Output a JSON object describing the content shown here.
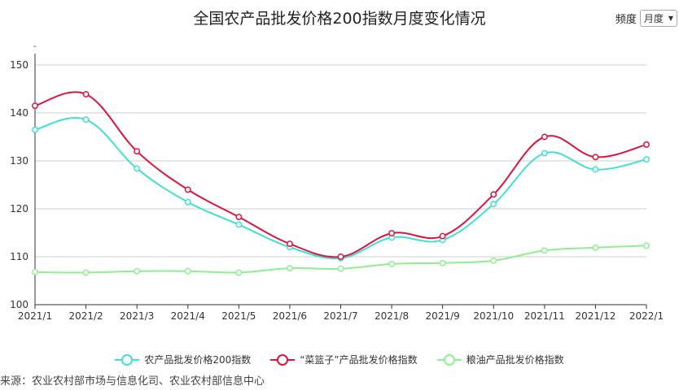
{
  "title": "全国农产品批发价格200指数月度变化情况",
  "frequency": {
    "label": "频度",
    "value": "月度"
  },
  "source": "来源：农业农村部市场与信息化司、农业农村部信息中心",
  "y_marker": "-",
  "chart_data": {
    "type": "line",
    "categories": [
      "2021/1",
      "2021/2",
      "2021/3",
      "2021/4",
      "2021/5",
      "2021/6",
      "2021/7",
      "2021/8",
      "2021/9",
      "2021/10",
      "2021/11",
      "2021/12",
      "2022/1"
    ],
    "ylim": [
      100,
      150
    ],
    "yticks": [
      100,
      110,
      120,
      130,
      140,
      150
    ],
    "grid": true,
    "legend_position": "bottom",
    "series": [
      {
        "name": "农产品批发价格200指数",
        "color": "#40E0D0",
        "values": [
          136.5,
          138.6,
          128.4,
          121.4,
          116.7,
          112.0,
          109.7,
          114.0,
          113.5,
          121.0,
          131.6,
          128.2,
          130.3
        ]
      },
      {
        "name": "“菜篮子”产品批发价格指数",
        "color": "#DC143C",
        "values": [
          141.5,
          143.9,
          132.0,
          124.0,
          118.3,
          112.7,
          110.0,
          114.9,
          114.3,
          123.0,
          135.0,
          130.8,
          133.4
        ]
      },
      {
        "name": "粮油产品批发价格指数",
        "color": "#90EE90",
        "values": [
          106.8,
          106.7,
          107.0,
          107.0,
          106.7,
          107.6,
          107.5,
          108.5,
          108.7,
          109.2,
          111.3,
          111.9,
          112.3
        ]
      }
    ]
  }
}
